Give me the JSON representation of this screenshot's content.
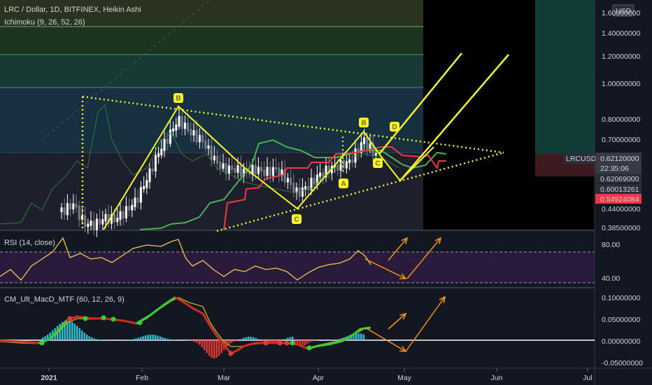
{
  "header": {
    "title": "LRC / Dollar, 1D, BITFINEX, Heikin Ashi",
    "indicator": "Ichimoku (9, 26, 52, 26)"
  },
  "currency_badge": "USD",
  "colors": {
    "background": "#131722",
    "bull": "#ffffff",
    "bear": "#787b86",
    "pattern": "#f5f52a",
    "cloud_green": "#4caf50",
    "cloud_red": "#f23645",
    "rsi_line": "#f2c94c",
    "arrows": "#f7931a",
    "macd_up": "#33d033",
    "macd_down": "#e53935",
    "hist_up": "#26c6da",
    "hist_down": "#e53935"
  },
  "chart_data": [
    {
      "type": "candlestick",
      "style": "Heikin Ashi",
      "y_scale": "log",
      "ylim": [
        0.37,
        1.6
      ],
      "y_ticks": [
        "1.60000000",
        "1.40000000",
        "1.20000000",
        "1.00000000",
        "0.80000000",
        "0.70000000",
        "0.62069000",
        "0.60013261",
        "0.44000000",
        "0.38500000"
      ],
      "x_ticks": [
        "2021",
        "Feb",
        "Mar",
        "Apr",
        "May",
        "Jun",
        "Jul"
      ],
      "price_tags": [
        {
          "label": "LRCUSD",
          "value": "0.62120000"
        },
        {
          "countdown": "22:35:06"
        },
        {
          "value": "0.62069000"
        },
        {
          "value": "0.60013261"
        },
        {
          "value": "0.54924084"
        }
      ],
      "wave_labels": [
        "B",
        "C",
        "B",
        "A",
        "C",
        "D"
      ],
      "pattern": "symmetrical triangle with ABCD waves"
    },
    {
      "type": "line",
      "name": "RSI (14, close)",
      "y_ticks": [
        "80.00",
        "40.00"
      ],
      "levels": [
        70,
        30
      ]
    },
    {
      "type": "histogram",
      "name": "CM_Ult_MacD_MTF (60, 12, 26, 9)",
      "y_ticks": [
        "0.10000000",
        "0.05000000",
        "0.00000000",
        "-0.05000000"
      ]
    }
  ]
}
